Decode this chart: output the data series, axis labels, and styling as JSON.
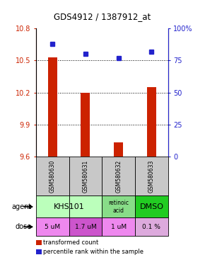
{
  "title": "GDS4912 / 1387912_at",
  "samples": [
    "GSM580630",
    "GSM580631",
    "GSM580632",
    "GSM580633"
  ],
  "bar_values": [
    10.53,
    10.2,
    9.73,
    10.25
  ],
  "dot_values": [
    88,
    80,
    77,
    82
  ],
  "ylim_left": [
    9.6,
    10.8
  ],
  "ylim_right": [
    0,
    100
  ],
  "yticks_left": [
    9.6,
    9.9,
    10.2,
    10.5,
    10.8
  ],
  "yticks_right": [
    0,
    25,
    50,
    75,
    100
  ],
  "ytick_labels_left": [
    "9.6",
    "9.9",
    "10.2",
    "10.5",
    "10.8"
  ],
  "ytick_labels_right": [
    "0",
    "25",
    "50",
    "75",
    "100%"
  ],
  "bar_color": "#cc2200",
  "dot_color": "#2222cc",
  "dose_labels": [
    "5 uM",
    "1.7 uM",
    "1 uM",
    "0.1 %"
  ],
  "sample_bg_color": "#c8c8c8",
  "agent_colors_per_col": [
    "#bbffbb",
    "#bbffbb",
    "#88dd88",
    "#22cc22"
  ],
  "dose_colors_per_col": [
    "#ee88ee",
    "#cc55cc",
    "#ee88ee",
    "#ddaadd"
  ],
  "legend_bar_color": "#cc2200",
  "legend_dot_color": "#2222cc"
}
